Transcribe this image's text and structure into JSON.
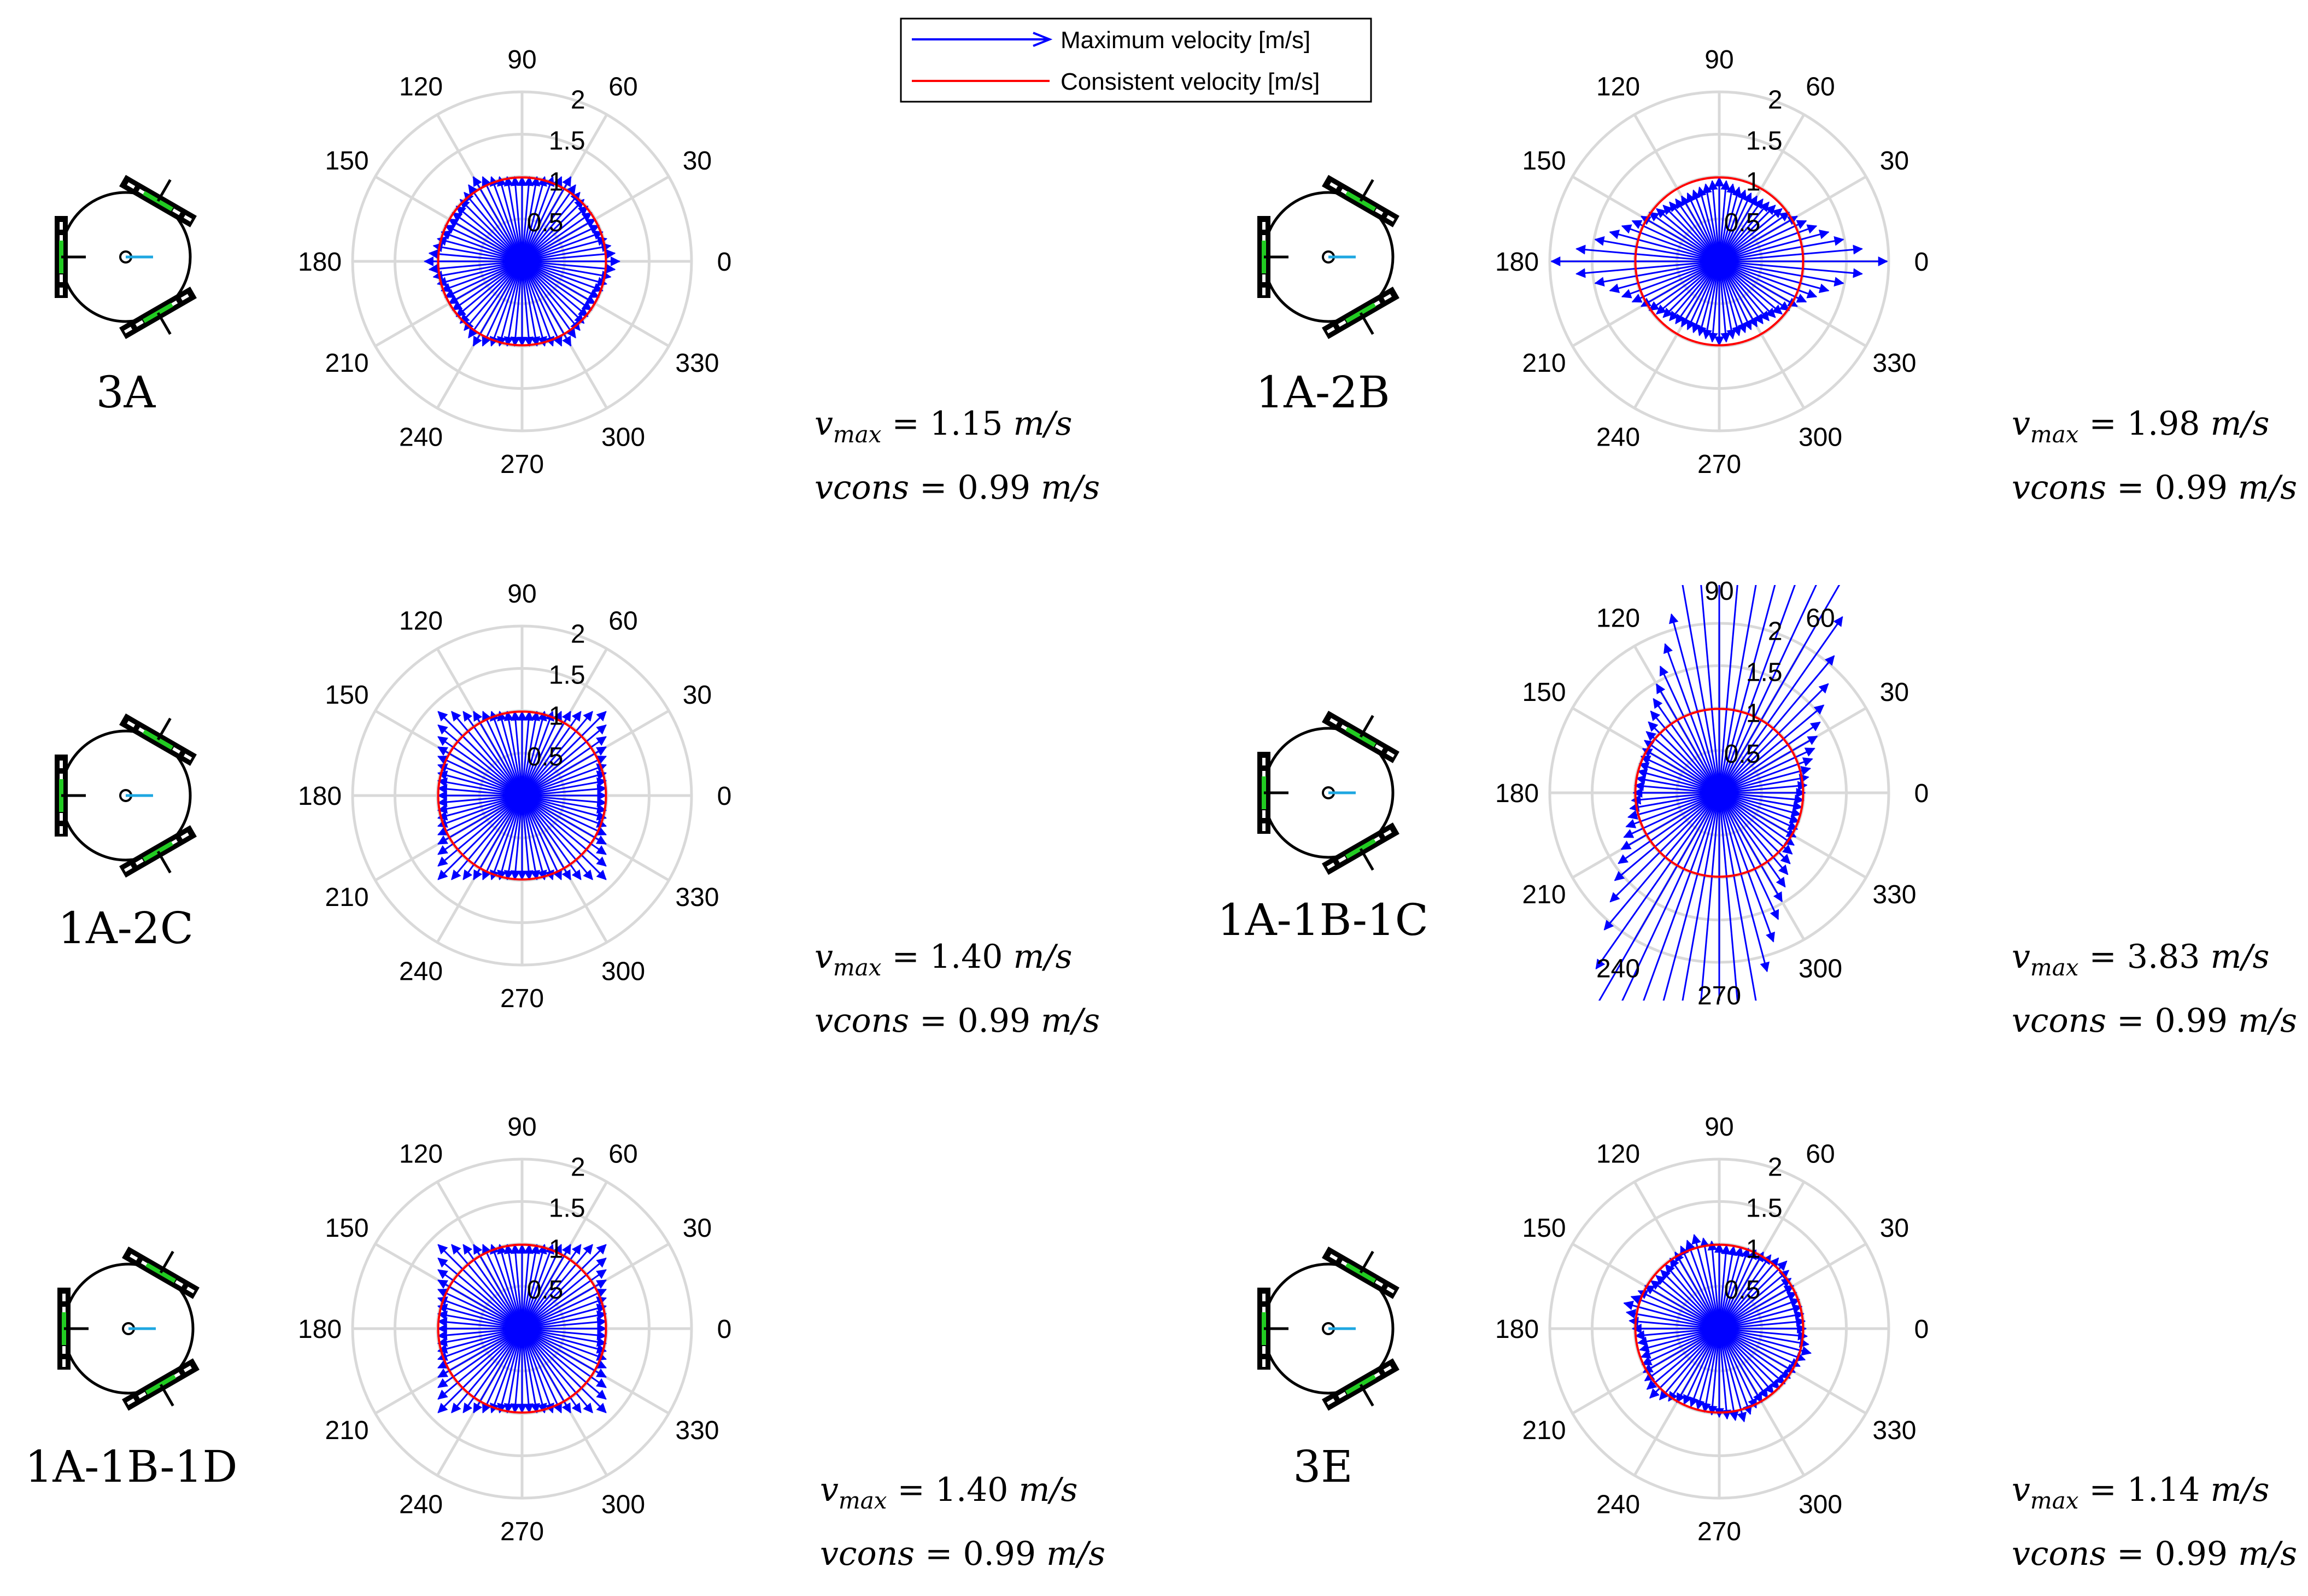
{
  "legend": {
    "max_label": "Maximum velocity [m/s]",
    "cons_label": "Consistent velocity [m/s]",
    "max_color": "#0000ff",
    "cons_color": "#ff0000"
  },
  "eq_labels": {
    "vmax_base": "v",
    "vmax_sub": "max",
    "vcons": "vcons",
    "equals": "=",
    "unit": "m/s"
  },
  "chart_data": [
    {
      "type": "polar",
      "config_label": "3A",
      "angular_ticks": [
        "0",
        "30",
        "60",
        "90",
        "120",
        "150",
        "180",
        "210",
        "240",
        "270",
        "300",
        "330"
      ],
      "radial_ticks": [
        "0.5",
        "1",
        "1.5",
        "2"
      ],
      "rlim": [
        0,
        2
      ],
      "grid": true,
      "series": [
        {
          "name": "Maximum velocity [m/s]",
          "kind": "arrows",
          "angle_step_deg": 5,
          "profile": "hexagon",
          "peak": 1.15
        },
        {
          "name": "Consistent velocity [m/s]",
          "kind": "circle",
          "value": 0.99
        }
      ],
      "vmax": "1.15",
      "vcons": "0.99"
    },
    {
      "type": "polar",
      "config_label": "1A-2B",
      "angular_ticks": [
        "0",
        "30",
        "60",
        "90",
        "120",
        "150",
        "180",
        "210",
        "240",
        "270",
        "300",
        "330"
      ],
      "radial_ticks": [
        "0.5",
        "1",
        "1.5",
        "2"
      ],
      "rlim": [
        0,
        2
      ],
      "grid": true,
      "series": [
        {
          "name": "Maximum velocity [m/s]",
          "kind": "arrows",
          "angle_step_deg": 5,
          "profile": "horizontal_diamond",
          "peak": 1.98
        },
        {
          "name": "Consistent velocity [m/s]",
          "kind": "circle",
          "value": 0.99
        }
      ],
      "vmax": "1.98",
      "vcons": "0.99"
    },
    {
      "type": "polar",
      "config_label": "1A-2C",
      "angular_ticks": [
        "0",
        "30",
        "60",
        "90",
        "120",
        "150",
        "180",
        "210",
        "240",
        "270",
        "300",
        "330"
      ],
      "radial_ticks": [
        "0.5",
        "1",
        "1.5",
        "2"
      ],
      "rlim": [
        0,
        2
      ],
      "grid": true,
      "series": [
        {
          "name": "Maximum velocity [m/s]",
          "kind": "arrows",
          "angle_step_deg": 5,
          "profile": "square",
          "peak": 1.4
        },
        {
          "name": "Consistent velocity [m/s]",
          "kind": "circle",
          "value": 0.99
        }
      ],
      "vmax": "1.40",
      "vcons": "0.99"
    },
    {
      "type": "polar",
      "config_label": "1A-1B-1C",
      "angular_ticks": [
        "0",
        "30",
        "60",
        "90",
        "120",
        "150",
        "180",
        "210",
        "240",
        "270",
        "300",
        "330"
      ],
      "radial_ticks": [
        "0.5",
        "1",
        "1.5",
        "2"
      ],
      "rlim": [
        0,
        2
      ],
      "grid": true,
      "series": [
        {
          "name": "Maximum velocity [m/s]",
          "kind": "arrows",
          "angle_step_deg": 5,
          "profile": "tilted_parallelogram",
          "peak": 3.83
        },
        {
          "name": "Consistent velocity [m/s]",
          "kind": "circle",
          "value": 0.99
        }
      ],
      "vmax": "3.83",
      "vcons": "0.99"
    },
    {
      "type": "polar",
      "config_label": "1A-1B-1D",
      "angular_ticks": [
        "0",
        "30",
        "60",
        "90",
        "120",
        "150",
        "180",
        "210",
        "240",
        "270",
        "300",
        "330"
      ],
      "radial_ticks": [
        "0.5",
        "1",
        "1.5",
        "2"
      ],
      "rlim": [
        0,
        2
      ],
      "grid": true,
      "series": [
        {
          "name": "Maximum velocity [m/s]",
          "kind": "arrows",
          "angle_step_deg": 5,
          "profile": "square",
          "peak": 1.4
        },
        {
          "name": "Consistent velocity [m/s]",
          "kind": "circle",
          "value": 0.99
        }
      ],
      "vmax": "1.40",
      "vcons": "0.99"
    },
    {
      "type": "polar",
      "config_label": "3E",
      "angular_ticks": [
        "0",
        "30",
        "60",
        "90",
        "120",
        "150",
        "180",
        "210",
        "240",
        "270",
        "300",
        "330"
      ],
      "radial_ticks": [
        "0.5",
        "1",
        "1.5",
        "2"
      ],
      "rlim": [
        0,
        2
      ],
      "grid": true,
      "series": [
        {
          "name": "Maximum velocity [m/s]",
          "kind": "arrows",
          "angle_step_deg": 5,
          "profile": "rotated_hexagon",
          "peak": 1.14
        },
        {
          "name": "Consistent velocity [m/s]",
          "kind": "circle",
          "value": 0.99
        }
      ],
      "vmax": "1.14",
      "vcons": "0.99"
    }
  ]
}
